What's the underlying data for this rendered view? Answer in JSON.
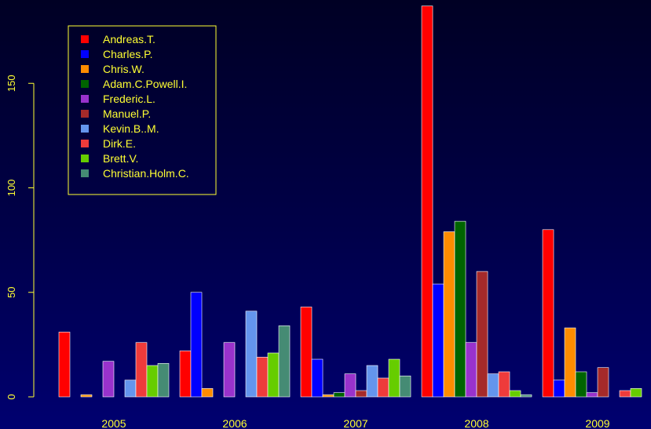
{
  "chart_data": {
    "type": "bar",
    "categories": [
      "2005",
      "2006",
      "2007",
      "2008",
      "2009"
    ],
    "ylim": [
      0,
      188
    ],
    "yticks": [
      0,
      50,
      100,
      150
    ],
    "legend_position": "top-left",
    "grid": false,
    "colors": {
      "text": "#ffff33",
      "axis": "#ffff33",
      "bar_border": "#ffffff"
    },
    "series": [
      {
        "name": "Andreas.T.",
        "color": "#ff0000",
        "values": [
          31,
          22,
          43,
          187,
          80
        ]
      },
      {
        "name": "Charles.P.",
        "color": "#0000ff",
        "values": [
          0,
          50,
          18,
          54,
          8
        ]
      },
      {
        "name": "Chris.W.",
        "color": "#ff8c00",
        "values": [
          1,
          4,
          1,
          79,
          33
        ]
      },
      {
        "name": "Adam.C.Powell.I.",
        "color": "#006400",
        "values": [
          0,
          0,
          2,
          84,
          12
        ]
      },
      {
        "name": "Frederic.L.",
        "color": "#9932cc",
        "values": [
          17,
          26,
          11,
          26,
          2
        ]
      },
      {
        "name": "Manuel.P.",
        "color": "#a52a2a",
        "values": [
          0,
          0,
          3,
          60,
          14
        ]
      },
      {
        "name": "Kevin.B..M.",
        "color": "#6495ed",
        "values": [
          8,
          41,
          15,
          11,
          0
        ]
      },
      {
        "name": "Dirk.E.",
        "color": "#ee3b3b",
        "values": [
          26,
          19,
          9,
          12,
          3
        ]
      },
      {
        "name": "Brett.V.",
        "color": "#66cd00",
        "values": [
          15,
          21,
          18,
          3,
          4
        ]
      },
      {
        "name": "Christian.Holm.C.",
        "color": "#458b74",
        "values": [
          16,
          34,
          10,
          1,
          0
        ]
      }
    ]
  }
}
